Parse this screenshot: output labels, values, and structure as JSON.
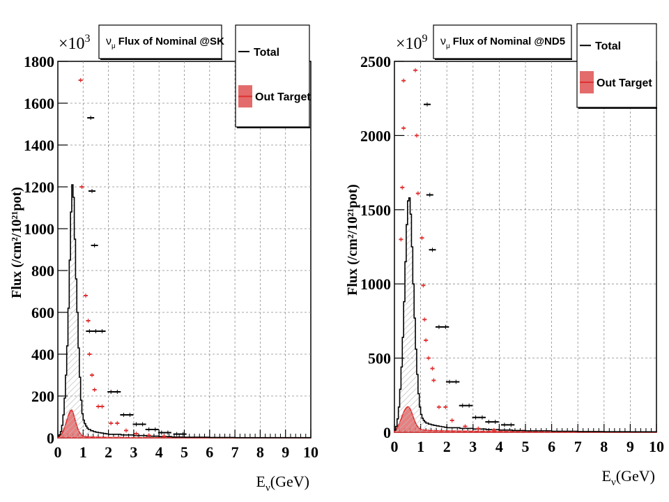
{
  "chart_data": [
    {
      "type": "histogram",
      "title": "ν_μ Flux of Nominal @SK",
      "title_greek": "ν",
      "title_sub": "μ",
      "title_rest": "Flux of Nominal @SK",
      "ylabel": "Flux (/cm²/10²¹pot)",
      "xlabel_main": "E",
      "xlabel_sub": "ν",
      "xlabel_rest": "(GeV)",
      "y_multiplier": "×10",
      "y_exponent": "3",
      "xlim": [
        0,
        10
      ],
      "ylim": [
        0,
        1800
      ],
      "x_ticks": [
        "0",
        "1",
        "2",
        "3",
        "4",
        "5",
        "6",
        "7",
        "8",
        "9",
        "10"
      ],
      "y_ticks": [
        "0",
        "200",
        "400",
        "600",
        "800",
        "1000",
        "1200",
        "1400",
        "1600",
        "1800"
      ],
      "grid": true,
      "legend_position": "top-right",
      "legend": [
        {
          "label": "Total",
          "color": "#000000",
          "style": "line"
        },
        {
          "label": "Out Target",
          "color": "#e03030",
          "style": "filled"
        }
      ],
      "series": [
        {
          "name": "Total",
          "color": "#000000",
          "x": [
            0,
            0.05,
            0.1,
            0.15,
            0.2,
            0.25,
            0.3,
            0.35,
            0.4,
            0.45,
            0.5,
            0.55,
            0.6,
            0.65,
            0.7,
            0.75,
            0.8,
            0.85,
            0.9,
            0.95,
            1.0,
            1.05,
            1.1,
            1.15,
            1.2,
            1.3,
            1.4,
            1.5,
            1.6,
            1.7,
            1.8,
            1.9,
            2.0,
            2.5,
            3.0,
            3.5,
            4.0,
            4.5,
            5.0,
            6.0,
            7.0,
            8.0,
            9.0,
            10.0
          ],
          "y": [
            8,
            15,
            30,
            60,
            110,
            190,
            300,
            440,
            620,
            850,
            1080,
            1210,
            1150,
            950,
            760,
            600,
            430,
            290,
            180,
            115,
            85,
            68,
            56,
            47,
            40,
            34,
            30,
            27,
            25,
            23,
            21,
            19,
            17,
            14,
            11,
            8,
            6,
            4,
            3,
            2,
            1,
            1,
            1,
            1
          ]
        },
        {
          "name": "Out Target",
          "color": "#e03030",
          "x": [
            0,
            0.05,
            0.1,
            0.15,
            0.2,
            0.25,
            0.3,
            0.35,
            0.4,
            0.45,
            0.5,
            0.55,
            0.6,
            0.65,
            0.7,
            0.75,
            0.8,
            0.85,
            0.9,
            0.95,
            1.0,
            1.1,
            1.2,
            1.4,
            1.6,
            1.8,
            2.0,
            2.5,
            3.0,
            4.0,
            5.0,
            6.0,
            8.0,
            10.0
          ],
          "y": [
            2,
            5,
            10,
            18,
            30,
            45,
            62,
            82,
            100,
            118,
            130,
            133,
            122,
            100,
            78,
            58,
            40,
            28,
            18,
            12,
            8,
            6,
            5,
            4,
            3,
            3,
            2,
            2,
            1,
            1,
            1,
            0,
            0,
            0
          ]
        }
      ],
      "markers": {
        "black": [
          {
            "x": 1.3,
            "y": 1530
          },
          {
            "x": 1.35,
            "y": 1180
          },
          {
            "x": 1.45,
            "y": 920
          },
          {
            "x": 1.25,
            "y": 510
          },
          {
            "x": 1.5,
            "y": 510
          },
          {
            "x": 1.75,
            "y": 510
          },
          {
            "x": 2.1,
            "y": 220
          },
          {
            "x": 2.35,
            "y": 220
          },
          {
            "x": 2.6,
            "y": 110
          },
          {
            "x": 2.85,
            "y": 110
          },
          {
            "x": 3.1,
            "y": 65
          },
          {
            "x": 3.35,
            "y": 65
          },
          {
            "x": 3.6,
            "y": 40
          },
          {
            "x": 3.85,
            "y": 40
          },
          {
            "x": 4.1,
            "y": 25
          },
          {
            "x": 4.35,
            "y": 25
          },
          {
            "x": 4.7,
            "y": 18
          },
          {
            "x": 4.95,
            "y": 18
          }
        ],
        "red": [
          {
            "x": 0.9,
            "y": 1710
          },
          {
            "x": 0.95,
            "y": 1200
          },
          {
            "x": 1.1,
            "y": 680
          },
          {
            "x": 1.2,
            "y": 560
          },
          {
            "x": 1.25,
            "y": 400
          },
          {
            "x": 1.35,
            "y": 300
          },
          {
            "x": 1.45,
            "y": 230
          },
          {
            "x": 1.6,
            "y": 150
          },
          {
            "x": 1.75,
            "y": 150
          },
          {
            "x": 2.1,
            "y": 70
          },
          {
            "x": 2.35,
            "y": 70
          },
          {
            "x": 2.7,
            "y": 35
          },
          {
            "x": 3.1,
            "y": 20
          },
          {
            "x": 3.6,
            "y": 12
          },
          {
            "x": 4.2,
            "y": 8
          }
        ]
      }
    },
    {
      "type": "histogram",
      "title": "ν_μ Flux of Nominal @ND5",
      "title_greek": "ν",
      "title_sub": "μ",
      "title_rest": "Flux of Nominal @ND5",
      "ylabel": "Flux (/cm²/10²¹pot)",
      "xlabel_main": "E",
      "xlabel_sub": "ν",
      "xlabel_rest": "(GeV)",
      "y_multiplier": "×10",
      "y_exponent": "9",
      "xlim": [
        0,
        10
      ],
      "ylim": [
        0,
        2500
      ],
      "x_ticks": [
        "0",
        "1",
        "2",
        "3",
        "4",
        "5",
        "6",
        "7",
        "8",
        "9",
        "10"
      ],
      "y_ticks": [
        "0",
        "500",
        "1000",
        "1500",
        "2000",
        "2500"
      ],
      "grid": true,
      "legend_position": "top-right",
      "legend": [
        {
          "label": "Total",
          "color": "#000000",
          "style": "line"
        },
        {
          "label": "Out Target",
          "color": "#e03030",
          "style": "filled"
        }
      ],
      "series": [
        {
          "name": "Total",
          "color": "#000000",
          "x": [
            0,
            0.05,
            0.1,
            0.15,
            0.2,
            0.25,
            0.3,
            0.35,
            0.4,
            0.45,
            0.5,
            0.55,
            0.6,
            0.65,
            0.7,
            0.75,
            0.8,
            0.85,
            0.9,
            0.95,
            1.0,
            1.05,
            1.1,
            1.15,
            1.2,
            1.3,
            1.4,
            1.5,
            1.6,
            1.7,
            1.8,
            1.9,
            2.0,
            2.5,
            3.0,
            3.5,
            4.0,
            4.5,
            5.0,
            6.0,
            7.0,
            8.0,
            9.0,
            10.0
          ],
          "y": [
            15,
            40,
            90,
            170,
            290,
            440,
            640,
            880,
            1150,
            1400,
            1560,
            1580,
            1470,
            1250,
            1000,
            770,
            560,
            390,
            260,
            170,
            120,
            95,
            80,
            70,
            62,
            55,
            50,
            46,
            43,
            40,
            37,
            34,
            31,
            26,
            22,
            18,
            15,
            12,
            10,
            7,
            5,
            4,
            3,
            2
          ]
        },
        {
          "name": "Out Target",
          "color": "#e03030",
          "x": [
            0,
            0.05,
            0.1,
            0.15,
            0.2,
            0.25,
            0.3,
            0.35,
            0.4,
            0.45,
            0.5,
            0.55,
            0.6,
            0.65,
            0.7,
            0.75,
            0.8,
            0.85,
            0.9,
            0.95,
            1.0,
            1.1,
            1.2,
            1.4,
            1.6,
            1.8,
            2.0,
            2.5,
            3.0,
            4.0,
            5.0,
            6.0,
            8.0,
            10.0
          ],
          "y": [
            5,
            15,
            28,
            45,
            65,
            88,
            112,
            135,
            152,
            165,
            172,
            170,
            158,
            138,
            112,
            88,
            65,
            48,
            35,
            26,
            20,
            16,
            14,
            12,
            11,
            10,
            9,
            8,
            7,
            6,
            5,
            4,
            3,
            2
          ]
        }
      ],
      "markers": {
        "black": [
          {
            "x": 1.25,
            "y": 2210
          },
          {
            "x": 1.35,
            "y": 1600
          },
          {
            "x": 1.45,
            "y": 1230
          },
          {
            "x": 1.7,
            "y": 710
          },
          {
            "x": 1.95,
            "y": 710
          },
          {
            "x": 2.1,
            "y": 340
          },
          {
            "x": 2.35,
            "y": 340
          },
          {
            "x": 2.6,
            "y": 180
          },
          {
            "x": 2.85,
            "y": 180
          },
          {
            "x": 3.1,
            "y": 100
          },
          {
            "x": 3.35,
            "y": 100
          },
          {
            "x": 3.6,
            "y": 70
          },
          {
            "x": 3.85,
            "y": 70
          },
          {
            "x": 4.2,
            "y": 50
          },
          {
            "x": 4.45,
            "y": 50
          }
        ],
        "red": [
          {
            "x": 0.35,
            "y": 2370
          },
          {
            "x": 0.8,
            "y": 2440
          },
          {
            "x": 0.35,
            "y": 2050
          },
          {
            "x": 0.85,
            "y": 2000
          },
          {
            "x": 0.3,
            "y": 1650
          },
          {
            "x": 0.9,
            "y": 1610
          },
          {
            "x": 0.25,
            "y": 1300
          },
          {
            "x": 1.05,
            "y": 1310
          },
          {
            "x": 1.1,
            "y": 990
          },
          {
            "x": 1.15,
            "y": 760
          },
          {
            "x": 1.2,
            "y": 620
          },
          {
            "x": 1.3,
            "y": 500
          },
          {
            "x": 1.45,
            "y": 430
          },
          {
            "x": 1.5,
            "y": 350
          },
          {
            "x": 1.7,
            "y": 170
          },
          {
            "x": 1.95,
            "y": 170
          },
          {
            "x": 2.2,
            "y": 80
          },
          {
            "x": 2.7,
            "y": 40
          },
          {
            "x": 3.2,
            "y": 25
          },
          {
            "x": 3.8,
            "y": 15
          }
        ]
      }
    }
  ]
}
